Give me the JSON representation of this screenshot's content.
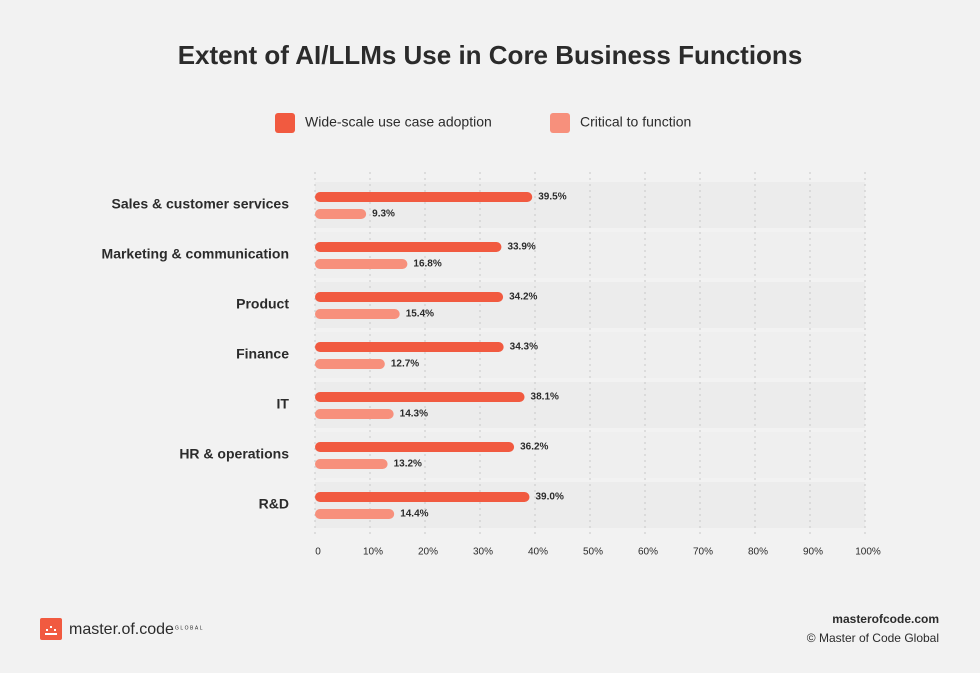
{
  "chart_data": {
    "type": "bar",
    "orientation": "horizontal",
    "title": "Extent of AI/LLMs Use in Core Business Functions",
    "categories": [
      "Sales & customer services",
      "Marketing & communication",
      "Product",
      "Finance",
      "IT",
      "HR & operations",
      "R&D"
    ],
    "series": [
      {
        "name": "Wide-scale use case adoption",
        "color": "#f15a40",
        "values": [
          39.5,
          33.9,
          34.2,
          34.3,
          38.1,
          36.2,
          39.0
        ],
        "value_labels": [
          "39.5%",
          "33.9%",
          "34.2%",
          "34.3%",
          "38.1%",
          "36.2%",
          "39.0%"
        ]
      },
      {
        "name": "Critical to function",
        "color": "#f7907c",
        "values": [
          9.3,
          16.8,
          15.4,
          12.7,
          14.3,
          13.2,
          14.4
        ],
        "value_labels": [
          "9.3%",
          "16.8%",
          "15.4%",
          "12.7%",
          "14.3%",
          "13.2%",
          "14.4%"
        ]
      }
    ],
    "xlim": [
      0,
      100
    ],
    "xticks": [
      0,
      {
        "value": 10,
        "label": "10%"
      },
      {
        "value": 20,
        "label": "20%"
      },
      {
        "value": 30,
        "label": "30%"
      },
      {
        "value": 40,
        "label": "40%"
      },
      {
        "value": 50,
        "label": "50%"
      },
      {
        "value": 60,
        "label": "60%"
      },
      {
        "value": 70,
        "label": "70%"
      },
      {
        "value": 80,
        "label": "80%"
      },
      {
        "value": 90,
        "label": "90%"
      },
      {
        "value": 100,
        "label": "100%"
      }
    ],
    "grid": true,
    "legend": "top"
  },
  "footer": {
    "logo_text": "master.of.code",
    "logo_sub": "GLOBAL",
    "site": "masterofcode.com",
    "copyright": "© Master of Code Global"
  }
}
